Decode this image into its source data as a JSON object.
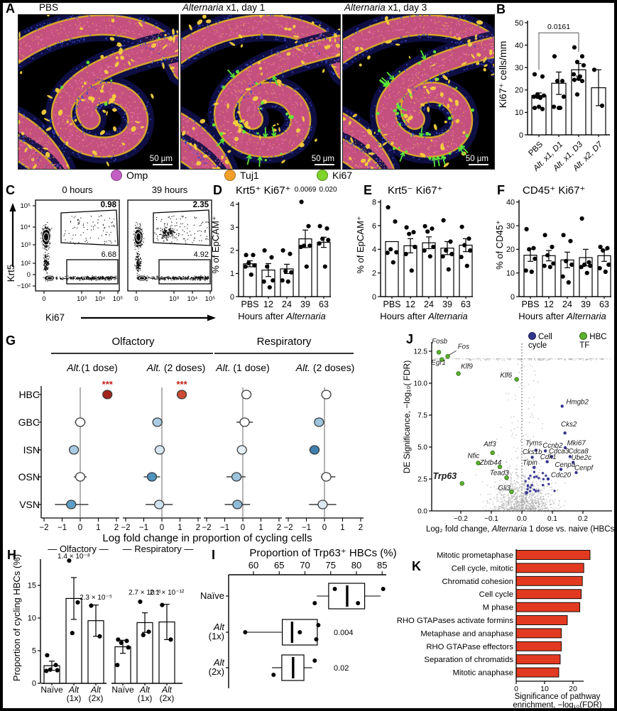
{
  "panelA": {
    "label": "A",
    "images": [
      {
        "title_italic": "",
        "title_rest": "PBS",
        "scale_bar": "50 μm"
      },
      {
        "title_italic": "Alternaria",
        "title_rest": " x1, day 1",
        "scale_bar": "50 μm"
      },
      {
        "title_italic": "Alternaria",
        "title_rest": " x1, day 3",
        "scale_bar": "50 μm"
      }
    ],
    "legend": [
      {
        "label": "Omp",
        "color": "#c45ec4"
      },
      {
        "label": "Tuj1",
        "color": "#f2a02a"
      },
      {
        "label": "Ki67",
        "color": "#7fd32a"
      }
    ]
  },
  "chart_data": [
    {
      "panel": "B",
      "type": "bar",
      "ylabel": "Ki67⁺ cells/mm",
      "ylim": [
        0,
        50
      ],
      "yticks": [
        0,
        10,
        20,
        30,
        40,
        50
      ],
      "categories": [
        "PBS",
        "Alt. x1, D1",
        "Alt. x1, D3",
        "Alt. x2, D7"
      ],
      "values": [
        17.5,
        23,
        29,
        21
      ],
      "errors": [
        1.2,
        5,
        2.8,
        8
      ],
      "dots": [
        [
          27,
          26,
          18,
          17.5,
          17,
          16.5,
          12.5,
          12,
          11.5,
          17
        ],
        [
          35,
          24,
          24,
          17,
          12.5,
          12,
          12
        ],
        [
          39,
          35,
          32.5,
          31,
          27,
          26,
          25,
          24.5,
          24,
          18
        ],
        [
          29,
          13
        ]
      ],
      "significance": {
        "label": "0.0161",
        "from": "PBS",
        "to": "Alt. x1, D3"
      }
    },
    {
      "panel": "C",
      "type": "flow",
      "xlabel": "Ki67",
      "ylabel": "Krt5",
      "xticks": [
        "0",
        "10³",
        "10⁴",
        "10⁵"
      ],
      "yticks": [
        "10⁵",
        "10⁴",
        "10³",
        "10²",
        "0",
        "−10²"
      ],
      "plots": [
        {
          "title": "0 hours",
          "gate_upper": "0.98",
          "gate_lower": "6.68"
        },
        {
          "title": "39 hours",
          "gate_upper": "2.35",
          "gate_lower": "4.92"
        }
      ]
    },
    {
      "panel": "D",
      "type": "bar",
      "title": "Krt5⁺ Ki67⁺",
      "ylabel": "% of EpCAM⁺",
      "xlabel_prefix": "Hours after ",
      "xlabel_italic": "Alternaria",
      "ylim": [
        0,
        4.3
      ],
      "yticks": [
        0,
        1,
        2,
        3,
        4
      ],
      "categories": [
        "PBS",
        "12",
        "24",
        "39",
        "63"
      ],
      "values": [
        1.42,
        1.15,
        1.2,
        2.5,
        2.35
      ],
      "errors": [
        0.13,
        0.28,
        0.2,
        0.38,
        0.22
      ],
      "dots": [
        [
          1.8,
          1.8,
          1.45,
          1.35,
          1.3,
          0.95
        ],
        [
          2.0,
          1.7,
          1.3,
          0.7,
          0.65,
          0.4
        ],
        [
          2.0,
          1.85,
          1.1,
          1.05,
          0.7,
          0.65
        ],
        [
          4.1,
          3.05,
          2.2,
          2.2,
          2.15,
          1.3
        ],
        [
          3.05,
          2.95,
          2.5,
          2.45,
          2.3,
          1.3
        ]
      ],
      "pvalues": [
        null,
        null,
        null,
        "0.0069",
        "0.020"
      ]
    },
    {
      "panel": "E",
      "type": "bar",
      "title": "Krt5⁻ Ki67⁺",
      "ylabel": "% of EpCAM⁺",
      "xlabel_prefix": "Hours after ",
      "xlabel_italic": "Alternaria",
      "ylim": [
        0,
        8.4
      ],
      "yticks": [
        0,
        2,
        4,
        6,
        8
      ],
      "categories": [
        "PBS",
        "12",
        "24",
        "39",
        "63"
      ],
      "values": [
        4.65,
        4.3,
        4.55,
        4.1,
        4.35
      ],
      "errors": [
        0,
        0.6,
        0.5,
        0.55,
        0.55
      ],
      "dots": [
        [
          7.55,
          6.35,
          4.0,
          3.75,
          3.7,
          2.9
        ],
        [
          5.85,
          5.45,
          5.3,
          4.2,
          3.6,
          2.2
        ],
        [
          5.95,
          5.75,
          5.5,
          4.2,
          3.9,
          3.4
        ],
        [
          6.45,
          4.65,
          3.9,
          3.6,
          3.4,
          2.3
        ],
        [
          5.9,
          4.9,
          4.35,
          3.9,
          3.35,
          2.6
        ]
      ],
      "pvalues": null
    },
    {
      "panel": "F",
      "type": "bar",
      "title": "CD45⁺ Ki67⁺",
      "ylabel": "% of CD45⁺",
      "xlabel_prefix": "Hours after ",
      "xlabel_italic": "Alternaria",
      "ylim": [
        0,
        42
      ],
      "yticks": [
        0,
        10,
        20,
        30,
        40
      ],
      "categories": [
        "PBS",
        "12",
        "24",
        "39",
        "63"
      ],
      "values": [
        17.5,
        17.3,
        15.5,
        16.5,
        17.3
      ],
      "errors": [
        2.6,
        2.2,
        3.3,
        3.5,
        2.4
      ],
      "dots": [
        [
          28.5,
          20.5,
          20,
          16,
          11,
          10.5
        ],
        [
          26,
          21,
          17.5,
          14,
          13,
          12.5
        ],
        [
          26,
          23.5,
          15,
          13.5,
          8.5,
          6
        ],
        [
          33,
          14.5,
          13.5,
          13,
          12.5,
          10
        ],
        [
          21,
          20.5,
          19.5,
          13.5,
          12,
          10.5
        ]
      ],
      "pvalues": null
    },
    {
      "panel": "G",
      "type": "forest",
      "group_headers": [
        "Olfactory",
        "Respiratory"
      ],
      "rows": [
        "HBC",
        "GBC",
        "ISN",
        "OSN",
        "VSN"
      ],
      "xlabel": "Log fold change in proportion of cycling cells",
      "xlim": [
        -2,
        2
      ],
      "xticks": [
        "−2",
        "−1",
        "0",
        "1",
        "2"
      ],
      "xtick_vals": [
        -2,
        -1,
        0,
        1,
        2
      ],
      "panels": [
        {
          "group": "Olfactory",
          "dose_italic": "Alt.",
          "dose_rest": "(1 dose)",
          "points": [
            {
              "x": 1.5,
              "lo": 1.35,
              "hi": 1.65,
              "color": "#a3241d",
              "sig": "***"
            },
            {
              "x": 0.0,
              "lo": -0.3,
              "hi": 0.3,
              "color": "#ffffff"
            },
            {
              "x": -0.35,
              "lo": -0.5,
              "hi": -0.2,
              "color": "#a9cce3"
            },
            {
              "x": 0.0,
              "lo": -0.35,
              "hi": 0.35,
              "color": "#ffffff"
            },
            {
              "x": -0.5,
              "lo": -1.4,
              "hi": 0.45,
              "color": "#5e9ec6"
            }
          ]
        },
        {
          "group": "Olfactory",
          "dose_italic": "Alt.",
          "dose_rest": " (2 doses)",
          "points": [
            {
              "x": 1.1,
              "lo": 0.95,
              "hi": 1.25,
              "color": "#cd4b33",
              "sig": "***"
            },
            {
              "x": -0.25,
              "lo": -0.5,
              "hi": 0.05,
              "color": "#a9cce3"
            },
            {
              "x": -0.12,
              "lo": -0.3,
              "hi": 0.05,
              "color": "#d7e7f2"
            },
            {
              "x": -0.55,
              "lo": -1.0,
              "hi": -0.1,
              "color": "#4e93c0"
            },
            {
              "x": -0.15,
              "lo": -0.9,
              "hi": 0.6,
              "color": "#cfe2ee"
            }
          ]
        },
        {
          "group": "Respiratory",
          "dose_italic": "Alt.",
          "dose_rest": " (1 dose)",
          "points": [
            {
              "x": 0.2,
              "lo": 0.1,
              "hi": 0.3,
              "color": "#ffffff"
            },
            {
              "x": 0.1,
              "lo": -0.35,
              "hi": 0.55,
              "color": "#ffffff"
            },
            {
              "x": -0.05,
              "lo": -0.2,
              "hi": 0.1,
              "color": "#e4eef5"
            },
            {
              "x": -0.35,
              "lo": -0.9,
              "hi": 0.15,
              "color": "#9cc4dd"
            },
            {
              "x": -0.3,
              "lo": -1.0,
              "hi": 0.4,
              "color": "#8fbcd8"
            }
          ]
        },
        {
          "group": "Respiratory",
          "dose_italic": "Alt.",
          "dose_rest": " (2 doses)",
          "points": [
            {
              "x": 0.1,
              "lo": 0.02,
              "hi": 0.18,
              "color": "#ffffff"
            },
            {
              "x": -0.3,
              "lo": -0.55,
              "hi": 0.0,
              "color": "#9cc4dd"
            },
            {
              "x": -0.55,
              "lo": -0.85,
              "hi": -0.3,
              "color": "#3f7fb0"
            },
            {
              "x": 0.1,
              "lo": -0.2,
              "hi": 0.6,
              "color": "#ffffff"
            },
            {
              "x": -0.1,
              "lo": -0.85,
              "hi": 0.65,
              "color": "#dce9f2"
            }
          ]
        }
      ]
    },
    {
      "panel": "H",
      "type": "bar-groups",
      "ylabel": "Proportion of cycling HBCs (%)",
      "ylim": [
        0,
        19.5
      ],
      "yticks": [
        0,
        5,
        10,
        15
      ],
      "groups": [
        {
          "title": "Olfactory",
          "categories": [
            {
              "line1": "Naïve"
            },
            {
              "line1": "Alt",
              "line2": "(1x)",
              "italic": true
            },
            {
              "line1": "Alt",
              "line2": "(2x)",
              "italic": true
            }
          ],
          "values": [
            2.7,
            13,
            9.6
          ],
          "errors": [
            0.7,
            3.2,
            2.4
          ],
          "dots": [
            [
              4.3,
              2.8,
              2.1,
              2.0,
              1.9
            ],
            [
              18.8,
              12.4,
              7.7
            ],
            [
              11.9,
              7.2
            ]
          ],
          "pvalues": [
            null,
            "1.4 × 10⁻⁸",
            "2.3 × 10⁻⁵"
          ]
        },
        {
          "title": "Respiratory",
          "categories": [
            {
              "line1": "Naïve"
            },
            {
              "line1": "Alt",
              "line2": "(1x)",
              "italic": true
            },
            {
              "line1": "Alt",
              "line2": "(2x)",
              "italic": true
            }
          ],
          "values": [
            5.6,
            9.3,
            9.4
          ],
          "errors": [
            1.0,
            1.5,
            2.7
          ],
          "dots": [
            [
              6.7,
              6.5,
              6.2,
              5.5,
              2.8
            ],
            [
              12.5,
              7.9,
              7.4
            ],
            [
              12.0,
              6.7
            ]
          ],
          "pvalues": [
            null,
            "2.7 × 10⁻⁶",
            "2.1 × 10⁻¹²"
          ]
        }
      ]
    },
    {
      "panel": "I",
      "type": "box",
      "title": "Proportion of Trp63⁺ HBCs (%)",
      "xlim": [
        56.5,
        86
      ],
      "xticks": [
        60,
        65,
        70,
        75,
        80,
        85
      ],
      "rows": [
        {
          "label_line1": "Naïve",
          "q1": 74.6,
          "q3": 81.6,
          "median": 78.2,
          "whisker_lo": 72.3,
          "whisker_hi": 84.7,
          "dots": [
            {
              "v": 75.8,
              "side": "above"
            },
            {
              "v": 85.2,
              "side": "above"
            },
            {
              "v": 71.9,
              "side": "below"
            },
            {
              "v": 80.3,
              "side": "below"
            }
          ],
          "p": null
        },
        {
          "label_line1": "Alt",
          "label_line2": "(1x)",
          "italic": true,
          "q1": 65.6,
          "q3": 72.4,
          "median": 67.5,
          "whisker_lo": 58.4,
          "whisker_hi": null,
          "dots": [
            {
              "v": 69.0,
              "side": "mid"
            },
            {
              "v": 72.6,
              "side": "above"
            },
            {
              "v": 72.2,
              "side": "below"
            },
            {
              "v": 58.4,
              "side": "mid"
            }
          ],
          "p": "0.004"
        },
        {
          "label_line1": "Alt",
          "label_line2": "(2x)",
          "italic": true,
          "q1": 65.5,
          "q3": 69.8,
          "median": 67.7,
          "whisker_lo": 63.6,
          "whisker_hi": 71.4,
          "dots": [
            {
              "v": 71.9,
              "side": "above"
            },
            {
              "v": 63.9,
              "side": "below"
            }
          ],
          "p": "0.02"
        }
      ]
    },
    {
      "panel": "J",
      "type": "scatter-volcano",
      "legend": [
        {
          "label": "Cell cycle",
          "color": "#34348c"
        },
        {
          "label": "HBC TF",
          "color": "#5cb32e"
        }
      ],
      "ylabel": "DE Significance, −log₁₀( FDR)",
      "xlabel_prefix": "Log₂ fold change, ",
      "xlabel_italic": "Alternaria",
      "xlabel_suffix": " 1 dose vs. naive (HBCs)",
      "xlim": [
        -0.3,
        0.3
      ],
      "ylim": [
        0,
        13.2
      ],
      "xticks": [
        "−0.2",
        "−0.1",
        "0.0",
        "0.1",
        "0.2"
      ],
      "xtick_vals": [
        -0.2,
        -0.1,
        0,
        0.1,
        0.2
      ],
      "yticks": [
        "0.0",
        "2.5",
        "5.0",
        "7.5",
        "10.0",
        "12.5"
      ],
      "ytick_vals": [
        0,
        2.5,
        5,
        7.5,
        10,
        12.5
      ],
      "genes": [
        {
          "name": "Fosb",
          "x": -0.272,
          "y": 12.42,
          "set": "tf",
          "lx": -0.295,
          "ly": 13.1
        },
        {
          "name": "Fos",
          "x": -0.243,
          "y": 12.1,
          "set": "tf",
          "lx": -0.21,
          "ly": 12.7,
          "leader": true
        },
        {
          "name": "Egr1",
          "x": -0.262,
          "y": 11.85,
          "set": "tf",
          "lx": -0.297,
          "ly": 11.45
        },
        {
          "name": "Klf9",
          "x": -0.208,
          "y": 10.75,
          "set": "tf",
          "lx": -0.2,
          "ly": 11.15
        },
        {
          "name": "Klf6",
          "x": -0.017,
          "y": 10.3,
          "set": "tf",
          "lx": -0.032,
          "ly": 10.45,
          "anchor": "end"
        },
        {
          "name": "Atf3",
          "x": -0.096,
          "y": 4.55,
          "set": "tf",
          "lx": -0.125,
          "ly": 5.05
        },
        {
          "name": "Nfic",
          "x": -0.143,
          "y": 3.75,
          "set": "tf",
          "lx": -0.178,
          "ly": 4.15
        },
        {
          "name": "Zbtb44",
          "x": -0.072,
          "y": 3.45,
          "set": "tf",
          "lx": -0.138,
          "ly": 3.6
        },
        {
          "name": "Tead3",
          "x": -0.05,
          "y": 2.6,
          "set": "tf",
          "lx": -0.105,
          "ly": 2.8
        },
        {
          "name": "Trp63",
          "x": -0.196,
          "y": 2.15,
          "set": "tf",
          "lx": -0.292,
          "ly": 2.5,
          "bold": true
        },
        {
          "name": "Gli3",
          "x": -0.034,
          "y": 1.5,
          "set": "tf",
          "lx": -0.078,
          "ly": 1.6
        },
        {
          "name": "Hmgb2",
          "x": 0.132,
          "y": 8.2,
          "set": "cc",
          "lx": 0.145,
          "ly": 8.35
        },
        {
          "name": "Cks2",
          "x": 0.141,
          "y": 6.1,
          "set": "cc",
          "lx": 0.128,
          "ly": 6.6
        },
        {
          "name": "Tyms",
          "x": 0.046,
          "y": 4.75,
          "set": "cc",
          "lx": 0.012,
          "ly": 5.15
        },
        {
          "name": "Ccnb2",
          "x": 0.077,
          "y": 4.7,
          "set": "cc",
          "lx": 0.068,
          "ly": 4.95
        },
        {
          "name": "Mki67",
          "x": 0.142,
          "y": 4.95,
          "set": "cc",
          "lx": 0.148,
          "ly": 5.15
        },
        {
          "name": "Cks1b",
          "x": 0.034,
          "y": 4.2,
          "set": "cc",
          "lx": 0.002,
          "ly": 4.45
        },
        {
          "name": "Cdca3",
          "x": 0.098,
          "y": 4.25,
          "set": "cc",
          "lx": 0.088,
          "ly": 4.5
        },
        {
          "name": "Cdca8",
          "x": 0.158,
          "y": 4.25,
          "set": "cc",
          "lx": 0.152,
          "ly": 4.5
        },
        {
          "name": "Cdk1",
          "x": 0.083,
          "y": 3.85,
          "set": "cc",
          "lx": 0.06,
          "ly": 4.05
        },
        {
          "name": "Ube2c",
          "x": 0.168,
          "y": 3.8,
          "set": "cc",
          "lx": 0.162,
          "ly": 4.0
        },
        {
          "name": "Tipin",
          "x": 0.04,
          "y": 3.4,
          "set": "cc",
          "lx": 0.002,
          "ly": 3.6
        },
        {
          "name": "Cenpa",
          "x": 0.128,
          "y": 3.25,
          "set": "cc",
          "lx": 0.108,
          "ly": 3.45
        },
        {
          "name": "Cenpf",
          "x": 0.178,
          "y": 3.0,
          "set": "cc",
          "lx": 0.172,
          "ly": 3.2
        },
        {
          "name": "Cdc20",
          "x": 0.086,
          "y": 2.5,
          "set": "cc",
          "lx": 0.095,
          "ly": 2.65
        }
      ]
    },
    {
      "panel": "K",
      "type": "hbar",
      "categories": [
        "Mitotic prometaphase",
        "Cell cycle, mitotic",
        "Chromatid cohesion",
        "Cell cycle",
        "M phase",
        "RHO GTAPases activate formins",
        "Metaphase and anaphase",
        "RHO GTAPase effectors",
        "Separation of chromatids",
        "Mitotic anaphase"
      ],
      "values": [
        26,
        23.8,
        23.3,
        22.9,
        22.4,
        18,
        15.9,
        15.9,
        15.5,
        15
      ],
      "bar_color": "#e23a20",
      "xticks": [
        0,
        10,
        20
      ],
      "xlim": [
        0,
        28
      ],
      "xlabel_line1": "Significance of pathway",
      "xlabel_line2": "enrichment, −log₁₀(FDR)"
    }
  ]
}
